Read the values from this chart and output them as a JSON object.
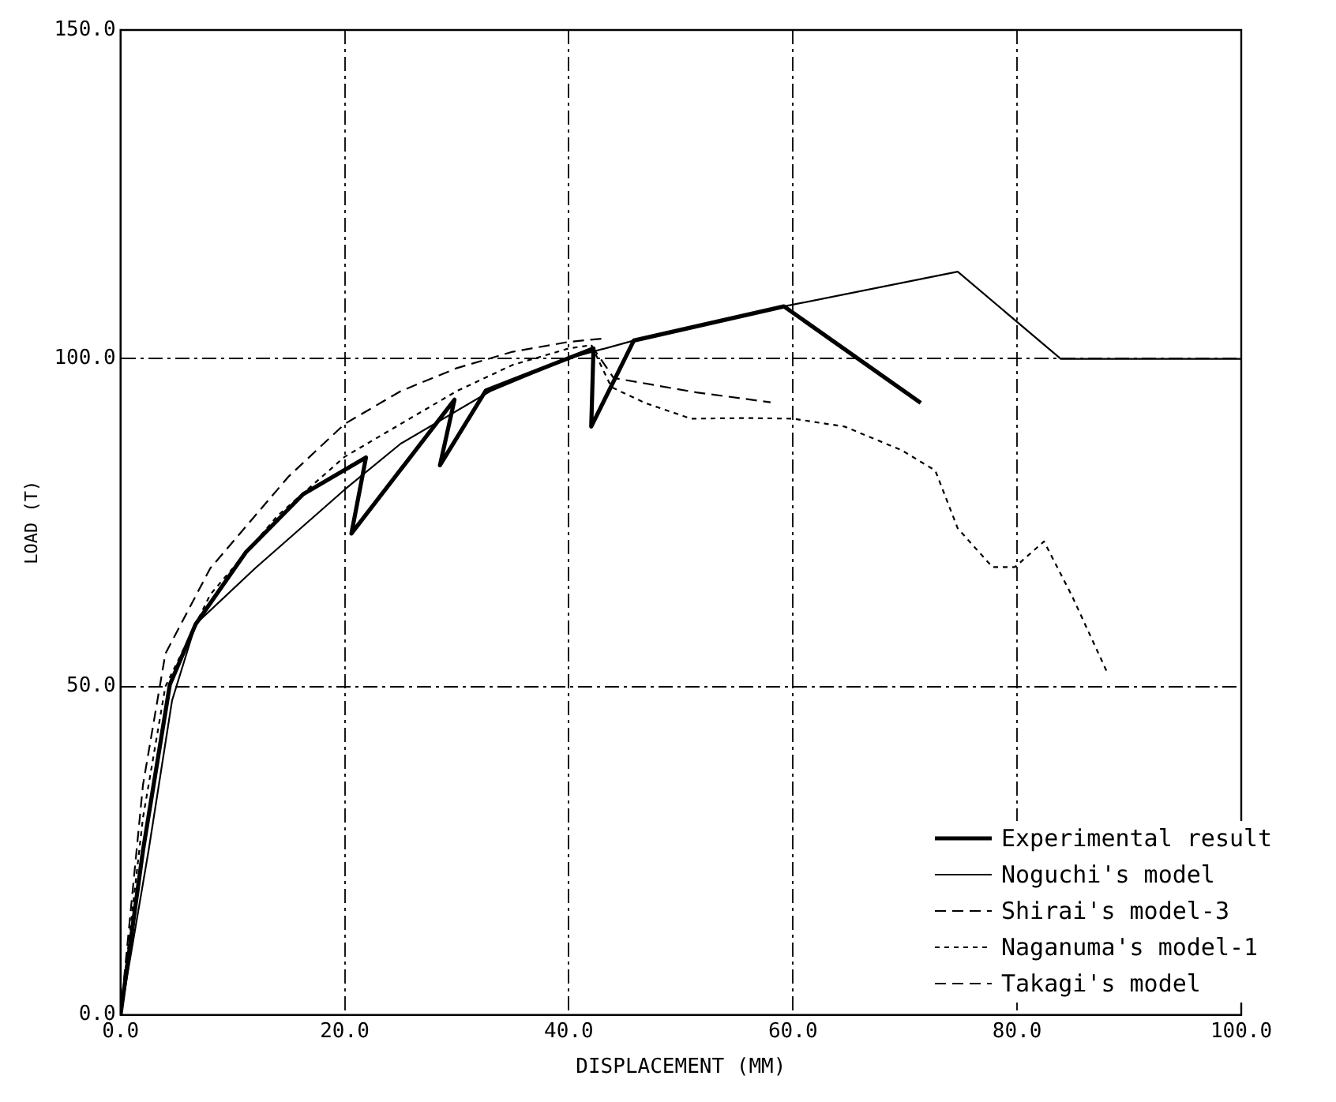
{
  "chart_data": {
    "type": "line",
    "xlabel": "DISPLACEMENT (MM)",
    "ylabel": "LOAD (T)",
    "xlim": [
      0,
      100
    ],
    "ylim": [
      0,
      150
    ],
    "xticks": [
      {
        "value": 0,
        "label": "0.0"
      },
      {
        "value": 20,
        "label": "20.0"
      },
      {
        "value": 40,
        "label": "40.0"
      },
      {
        "value": 60,
        "label": "60.0"
      },
      {
        "value": 80,
        "label": "80.0"
      },
      {
        "value": 100,
        "label": "100.0"
      }
    ],
    "yticks": [
      {
        "value": 0,
        "label": "0.0"
      },
      {
        "value": 50,
        "label": "50.0"
      },
      {
        "value": 100,
        "label": "100.0"
      },
      {
        "value": 150,
        "label": "150.0"
      }
    ],
    "grid": true,
    "legend": "bottom right",
    "marker": "none",
    "series": [
      {
        "name": "Experimental result",
        "color": "#000000",
        "line_style": "solid",
        "x": [
          0,
          2,
          4.4,
          6.7,
          11.2,
          16.3,
          21.9,
          20.6,
          29.8,
          28.5,
          32.6,
          42.2,
          42,
          45.8,
          59.2,
          71.4
        ],
        "values": [
          0,
          25,
          50.3,
          59.5,
          70.5,
          79.3,
          84.9,
          73.3,
          93.7,
          83.7,
          95.1,
          101.5,
          89.6,
          102.7,
          107.9,
          93.2
        ]
      },
      {
        "name": "Noguchi's model",
        "color": "#000000",
        "line_style": "solid",
        "x": [
          0,
          2.5,
          4.6,
          6.7,
          12,
          20,
          25,
          33,
          40,
          45.8,
          59.2,
          74.7,
          83.9,
          100
        ],
        "values": [
          0,
          25,
          47.9,
          59.5,
          68,
          80,
          87,
          95,
          100,
          102.7,
          107.9,
          113.2,
          99.9,
          99.9
        ]
      },
      {
        "name": "Shirai's model-3",
        "color": "#000000",
        "line_style": "dashed",
        "x": [
          0,
          2,
          4,
          8,
          15,
          20,
          25,
          30,
          35,
          40,
          43
        ],
        "values": [
          0,
          35,
          55,
          68,
          82,
          90,
          95,
          98.5,
          101,
          102.5,
          103
        ]
      },
      {
        "name": "Naganuma's model-1",
        "color": "#000000",
        "line_style": "dotted",
        "x": [
          0,
          2,
          4,
          8,
          14,
          20,
          25,
          30,
          35,
          40,
          42,
          43.8,
          46.8,
          50.9,
          55.9,
          60,
          64.6,
          69.7,
          72.7,
          74.7,
          77.8,
          79.8,
          82.4,
          84.9,
          88
        ],
        "values": [
          0,
          30,
          50,
          64,
          76,
          85,
          90,
          95,
          99,
          101.5,
          102,
          95.6,
          93.2,
          90.8,
          90.9,
          90.8,
          89.6,
          86,
          82.9,
          74.1,
          68.2,
          68.2,
          72.1,
          63.8,
          52.3
        ]
      },
      {
        "name": "Takagi's model",
        "color": "#000000",
        "line_style": "dashed",
        "x": [
          42,
          44,
          51.4,
          58
        ],
        "values": [
          102,
          97,
          94.8,
          93.3
        ]
      }
    ]
  }
}
